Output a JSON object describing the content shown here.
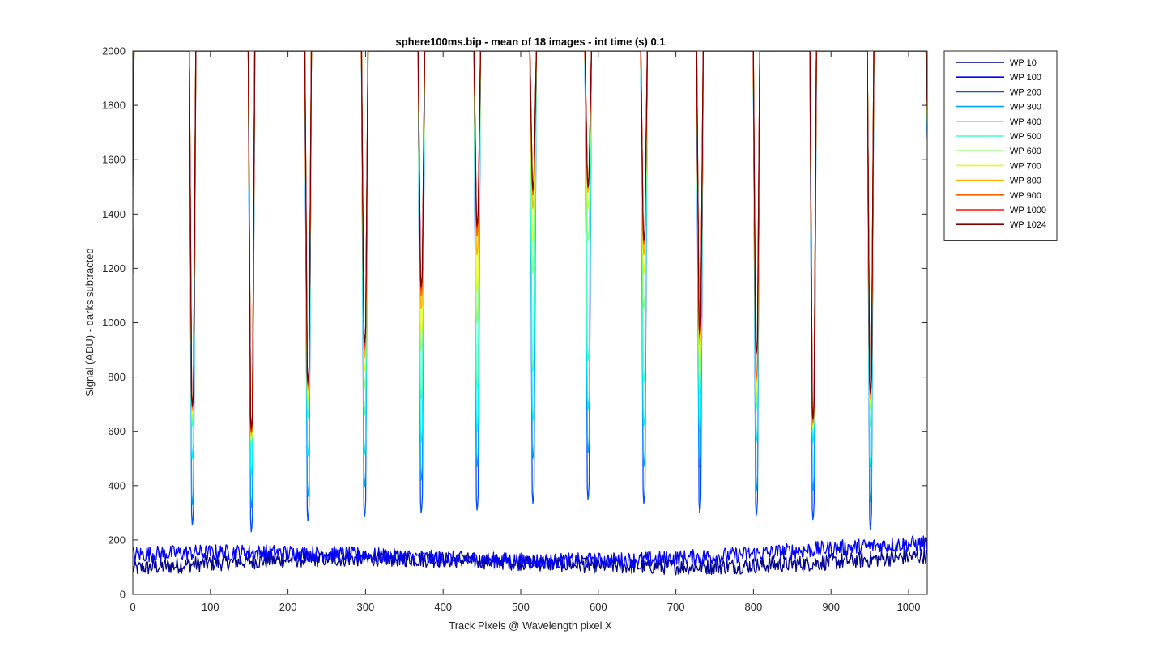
{
  "chart_data": {
    "type": "line",
    "title": "sphere100ms.bip - mean of 18 images - int time (s) 0.1",
    "xlabel": "Track Pixels @ Wavelength pixel X",
    "ylabel": "Signal (ADU) - darks subtracted",
    "xlim": [
      0,
      1024
    ],
    "ylim": [
      0,
      2000
    ],
    "x_ticks": [
      0,
      100,
      200,
      300,
      400,
      500,
      600,
      700,
      800,
      900,
      1000
    ],
    "y_ticks": [
      0,
      200,
      400,
      600,
      800,
      1000,
      1200,
      1400,
      1600,
      1800,
      2000
    ],
    "grid": false,
    "legend_position": "outside-top-right",
    "dip_centers": [
      77,
      153,
      226,
      299,
      372,
      444,
      516,
      587,
      659,
      731,
      804,
      877,
      951
    ],
    "noise_floor": {
      "note": "WP 10 and WP 100 stay near the dark floor (≈80–230 ADU) across all track pixels",
      "WP 10": {
        "start": 95,
        "end": 140
      },
      "WP 100": {
        "start": 125,
        "end": 165
      }
    },
    "series": [
      {
        "name": "WP 10",
        "color": "#00008f",
        "kind": "noise",
        "minima": []
      },
      {
        "name": "WP 100",
        "color": "#0000ff",
        "kind": "noise",
        "minima": []
      },
      {
        "name": "WP 200",
        "color": "#0050ff",
        "kind": "dips",
        "minima": [
          255,
          230,
          270,
          285,
          300,
          310,
          335,
          350,
          335,
          300,
          290,
          275,
          240
        ]
      },
      {
        "name": "WP 300",
        "color": "#00a0ff",
        "kind": "dips",
        "minima": [
          330,
          320,
          360,
          395,
          420,
          470,
          500,
          520,
          470,
          470,
          380,
          380,
          340
        ]
      },
      {
        "name": "WP 400",
        "color": "#00f0ff",
        "kind": "dips",
        "minima": [
          500,
          440,
          510,
          515,
          560,
          600,
          640,
          680,
          620,
          600,
          560,
          560,
          470
        ]
      },
      {
        "name": "WP 500",
        "color": "#40ffbf",
        "kind": "dips",
        "minima": [
          620,
          540,
          650,
          660,
          720,
          760,
          820,
          860,
          780,
          740,
          680,
          680,
          620
        ]
      },
      {
        "name": "WP 600",
        "color": "#90ff6f",
        "kind": "dips",
        "minima": [
          640,
          560,
          690,
          760,
          900,
          1000,
          1180,
          1300,
          1050,
          780,
          710,
          640,
          680
        ]
      },
      {
        "name": "WP 700",
        "color": "#e0ff1f",
        "kind": "dips",
        "minima": [
          660,
          570,
          720,
          820,
          960,
          1120,
          1300,
          1420,
          1180,
          860,
          740,
          610,
          700
        ]
      },
      {
        "name": "WP 800",
        "color": "#ffb000",
        "kind": "dips",
        "minima": [
          675,
          585,
          750,
          870,
          1050,
          1250,
          1420,
          1480,
          1250,
          920,
          780,
          625,
          720
        ]
      },
      {
        "name": "WP 900",
        "color": "#ff6000",
        "kind": "dips",
        "minima": [
          685,
          595,
          765,
          900,
          1100,
          1320,
          1470,
          1495,
          1290,
          945,
          795,
          635,
          735
        ]
      },
      {
        "name": "WP 1000",
        "color": "#ff1000",
        "kind": "dips",
        "minima": [
          690,
          600,
          775,
          915,
          1125,
          1350,
          1485,
          1500,
          1300,
          955,
          885,
          645,
          740
        ]
      },
      {
        "name": "WP 1024",
        "color": "#800000",
        "kind": "dips",
        "minima": [
          692,
          608,
          782,
          928,
          1135,
          1358,
          1490,
          1500,
          1302,
          960,
          890,
          648,
          745
        ]
      }
    ]
  }
}
